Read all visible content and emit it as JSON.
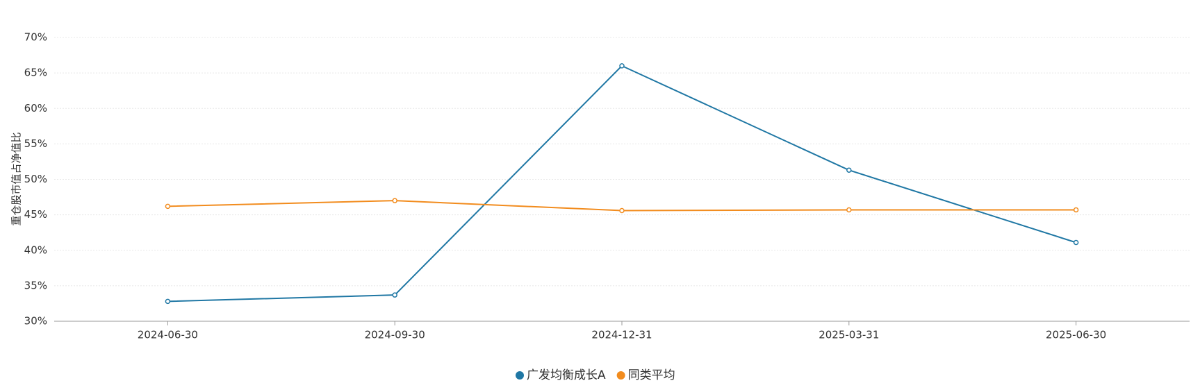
{
  "chart_data": {
    "type": "line",
    "y_label": "重仓股市值占净值比",
    "categories": [
      "2024-06-30",
      "2024-09-30",
      "2024-12-31",
      "2025-03-31",
      "2025-06-30"
    ],
    "series": [
      {
        "name": "广发均衡成长A",
        "color": "#1f77a4",
        "values": [
          32.8,
          33.7,
          66.0,
          51.3,
          41.1
        ]
      },
      {
        "name": "同类平均",
        "color": "#f28c1e",
        "values": [
          46.2,
          47.0,
          45.6,
          45.7,
          45.7
        ]
      }
    ],
    "ylim": [
      30,
      70
    ],
    "yticks": [
      {
        "value": 30,
        "label": "30%"
      },
      {
        "value": 35,
        "label": "35%"
      },
      {
        "value": 40,
        "label": "40%"
      },
      {
        "value": 45,
        "label": "45%"
      },
      {
        "value": 50,
        "label": "50%"
      },
      {
        "value": 55,
        "label": "55%"
      },
      {
        "value": 60,
        "label": "60%"
      },
      {
        "value": 65,
        "label": "65%"
      },
      {
        "value": 70,
        "label": "70%"
      }
    ],
    "grid": true
  }
}
